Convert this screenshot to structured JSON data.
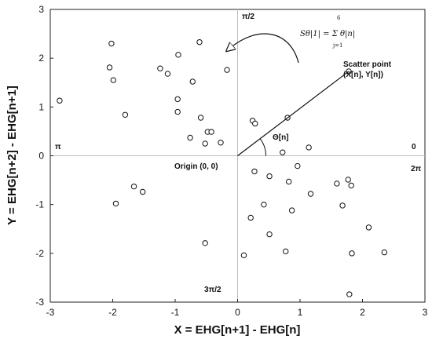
{
  "chart_data": {
    "type": "scatter",
    "xlabel": "X = EHG[n+1] - EHG[n]",
    "ylabel": "Y = EHG[n+2] - EHG[n+1]",
    "xlim": [
      -3,
      3
    ],
    "ylim": [
      -3,
      3
    ],
    "xticks": [
      "-3",
      "-2",
      "-1",
      "0",
      "1",
      "2",
      "3"
    ],
    "yticks": [
      "3",
      "2",
      "1",
      "0",
      "-1",
      "-2",
      "-3"
    ],
    "grid": false,
    "points": [
      {
        "x": -2.85,
        "y": 1.13
      },
      {
        "x": -2.02,
        "y": 2.3
      },
      {
        "x": -2.05,
        "y": 1.81
      },
      {
        "x": -1.99,
        "y": 1.55
      },
      {
        "x": -1.8,
        "y": 0.84
      },
      {
        "x": -1.24,
        "y": 1.79
      },
      {
        "x": -1.12,
        "y": 1.68
      },
      {
        "x": -0.95,
        "y": 2.07
      },
      {
        "x": -0.96,
        "y": 1.16
      },
      {
        "x": -0.96,
        "y": 0.9
      },
      {
        "x": -0.72,
        "y": 1.52
      },
      {
        "x": -0.61,
        "y": 2.33
      },
      {
        "x": -0.59,
        "y": 0.78
      },
      {
        "x": -0.17,
        "y": 1.76
      },
      {
        "x": -0.48,
        "y": 0.49
      },
      {
        "x": -0.42,
        "y": 0.49
      },
      {
        "x": -0.76,
        "y": 0.37
      },
      {
        "x": -0.52,
        "y": 0.25
      },
      {
        "x": -0.27,
        "y": 0.27
      },
      {
        "x": 0.24,
        "y": 0.72
      },
      {
        "x": 0.28,
        "y": 0.66
      },
      {
        "x": 0.8,
        "y": 0.78
      },
      {
        "x": 0.72,
        "y": 0.07
      },
      {
        "x": 1.14,
        "y": 0.17
      },
      {
        "x": 1.78,
        "y": 1.73
      },
      {
        "x": 0.27,
        "y": -0.32
      },
      {
        "x": 0.51,
        "y": -0.42
      },
      {
        "x": 0.96,
        "y": -0.21
      },
      {
        "x": 0.82,
        "y": -0.53
      },
      {
        "x": 1.17,
        "y": -0.78
      },
      {
        "x": 1.59,
        "y": -0.57
      },
      {
        "x": 1.77,
        "y": -0.49
      },
      {
        "x": 1.82,
        "y": -0.61
      },
      {
        "x": -1.95,
        "y": -0.98
      },
      {
        "x": -1.66,
        "y": -0.63
      },
      {
        "x": -1.52,
        "y": -0.74
      },
      {
        "x": 0.42,
        "y": -1.0
      },
      {
        "x": 0.21,
        "y": -1.27
      },
      {
        "x": 0.87,
        "y": -1.12
      },
      {
        "x": 1.68,
        "y": -1.02
      },
      {
        "x": 2.1,
        "y": -1.47
      },
      {
        "x": 0.51,
        "y": -1.61
      },
      {
        "x": -0.52,
        "y": -1.79
      },
      {
        "x": 0.1,
        "y": -2.04
      },
      {
        "x": 0.77,
        "y": -1.96
      },
      {
        "x": 1.83,
        "y": -2.0
      },
      {
        "x": 2.35,
        "y": -1.98
      },
      {
        "x": 1.79,
        "y": -2.84
      }
    ],
    "annotations": {
      "pi_half": "π/2",
      "pi": "π",
      "zero": "0",
      "two_pi": "2π",
      "three_pi_half": "3π/2",
      "origin": "Origin (0, 0)",
      "theta": "Θ[n]",
      "scatter_point_line1": "Scatter point",
      "scatter_point_line2": "(X[n], Y[n])",
      "formula": "Sθ|1| = Σ θ|n|",
      "formula_upper": "6",
      "formula_lower": "j=1"
    },
    "highlight_point": {
      "x": 1.78,
      "y": 1.73
    }
  }
}
